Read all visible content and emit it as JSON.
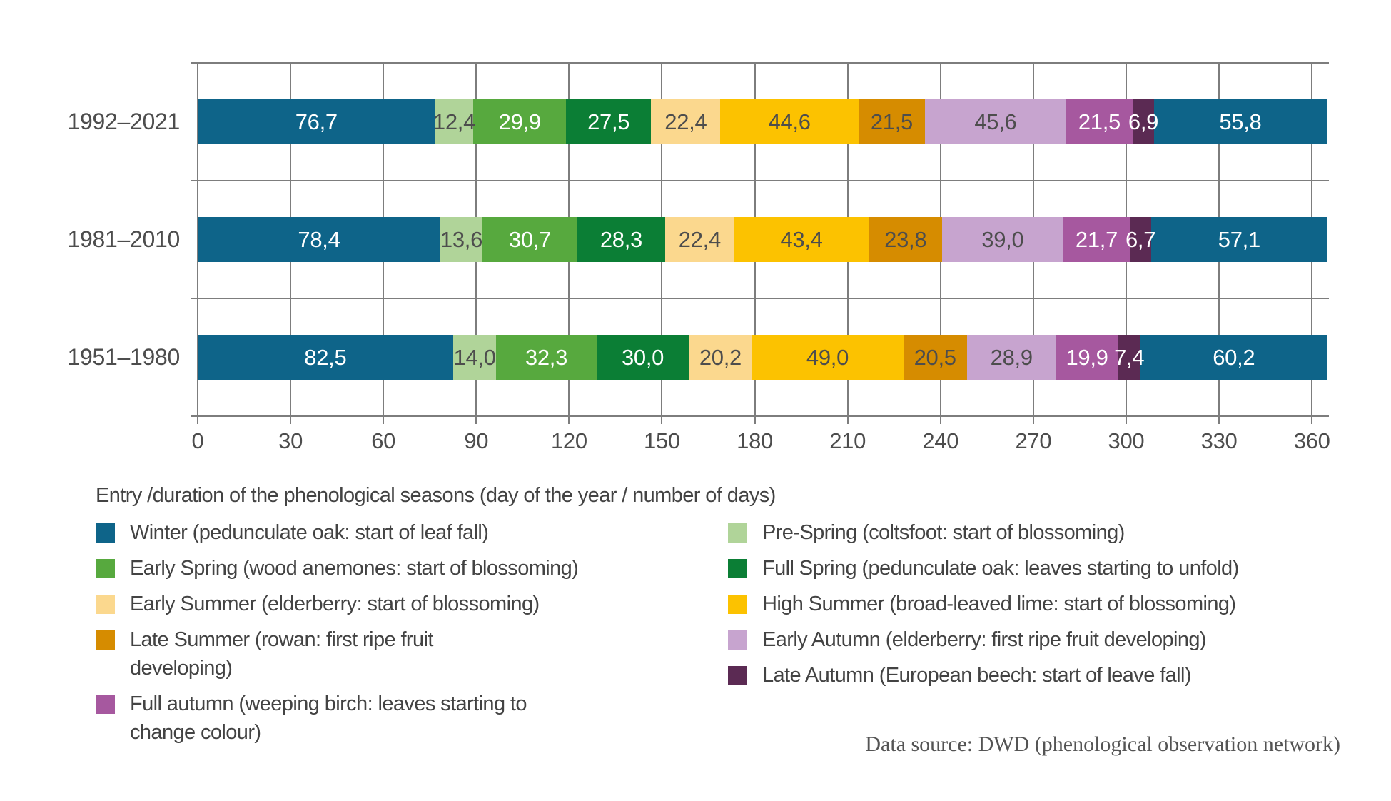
{
  "chart_data": {
    "type": "bar",
    "variant": "horizontal-stacked",
    "title": "Entry /duration of the phenological seasons (day of the year / number of days)",
    "xlabel": "day of the year",
    "axis": {
      "ticks": [
        0,
        30,
        60,
        90,
        120,
        150,
        180,
        210,
        240,
        270,
        300,
        330,
        360
      ],
      "max_days": 365.5,
      "grid": true
    },
    "seasons": {
      "winter": {
        "color": "#0e6489",
        "text": "#ffffff"
      },
      "pre_spring": {
        "color": "#b0d499",
        "text": "#4d4d4d"
      },
      "early_spring": {
        "color": "#57a93e",
        "text": "#ffffff"
      },
      "full_spring": {
        "color": "#0b7e35",
        "text": "#ffffff"
      },
      "early_summer": {
        "color": "#fbd88e",
        "text": "#4d4d4d"
      },
      "high_summer": {
        "color": "#fcc200",
        "text": "#4d4d4d"
      },
      "late_summer": {
        "color": "#d68c00",
        "text": "#4d4d4d"
      },
      "early_autumn": {
        "color": "#c7a4cf",
        "text": "#4d4d4d"
      },
      "full_autumn": {
        "color": "#a6589f",
        "text": "#ffffff"
      },
      "late_autumn": {
        "color": "#5b2a53",
        "text": "#ffffff"
      }
    },
    "rows": [
      {
        "label": "1992–2021",
        "segments": [
          [
            "winter",
            76.7,
            "76,7"
          ],
          [
            "pre_spring",
            12.4,
            "12,4"
          ],
          [
            "early_spring",
            29.9,
            "29,9"
          ],
          [
            "full_spring",
            27.5,
            "27,5"
          ],
          [
            "early_summer",
            22.4,
            "22,4"
          ],
          [
            "high_summer",
            44.6,
            "44,6"
          ],
          [
            "late_summer",
            21.5,
            "21,5"
          ],
          [
            "early_autumn",
            45.6,
            "45,6"
          ],
          [
            "full_autumn",
            21.5,
            "21,5"
          ],
          [
            "late_autumn",
            6.9,
            "6,9"
          ],
          [
            "winter",
            55.8,
            "55,8"
          ]
        ]
      },
      {
        "label": "1981–2010",
        "segments": [
          [
            "winter",
            78.4,
            "78,4"
          ],
          [
            "pre_spring",
            13.6,
            "13,6"
          ],
          [
            "early_spring",
            30.7,
            "30,7"
          ],
          [
            "full_spring",
            28.3,
            "28,3"
          ],
          [
            "early_summer",
            22.4,
            "22,4"
          ],
          [
            "high_summer",
            43.4,
            "43,4"
          ],
          [
            "late_summer",
            23.8,
            "23,8"
          ],
          [
            "early_autumn",
            39.0,
            "39,0"
          ],
          [
            "full_autumn",
            21.7,
            "21,7"
          ],
          [
            "late_autumn",
            6.7,
            "6,7"
          ],
          [
            "winter",
            57.1,
            "57,1"
          ]
        ]
      },
      {
        "label": "1951–1980",
        "segments": [
          [
            "winter",
            82.5,
            "82,5"
          ],
          [
            "pre_spring",
            14.0,
            "14,0"
          ],
          [
            "early_spring",
            32.3,
            "32,3"
          ],
          [
            "full_spring",
            30.0,
            "30,0"
          ],
          [
            "early_summer",
            20.2,
            "20,2"
          ],
          [
            "high_summer",
            49.0,
            "49,0"
          ],
          [
            "late_summer",
            20.5,
            "20,5"
          ],
          [
            "early_autumn",
            28.9,
            "28,9"
          ],
          [
            "full_autumn",
            19.9,
            "19,9"
          ],
          [
            "late_autumn",
            7.4,
            "7,4"
          ],
          [
            "winter",
            60.2,
            "60,2"
          ]
        ]
      }
    ],
    "legend": {
      "columns": [
        [
          {
            "season": "winter",
            "label": "Winter (pedunculate oak: start of leaf fall)"
          },
          {
            "season": "early_spring",
            "label": "Early Spring (wood anemones: start of blossoming)"
          },
          {
            "season": "early_summer",
            "label": "Early Summer (elderberry: start of blossoming)"
          },
          {
            "season": "late_summer",
            "label": "Late Summer (rowan: first ripe fruit\ndeveloping)"
          },
          {
            "season": "full_autumn",
            "label": "Full autumn (weeping birch: leaves starting to\nchange colour)"
          }
        ],
        [
          {
            "season": "pre_spring",
            "label": "Pre-Spring (coltsfoot: start of blossoming)"
          },
          {
            "season": "full_spring",
            "label": "Full Spring (pedunculate oak: leaves starting to unfold)"
          },
          {
            "season": "high_summer",
            "label": "High Summer (broad-leaved lime: start of blossoming)"
          },
          {
            "season": "early_autumn",
            "label": "Early Autumn (elderberry: first ripe fruit developing)"
          },
          {
            "season": "late_autumn",
            "label": "Late Autumn (European beech: start of leave fall)"
          }
        ]
      ]
    },
    "source_note": "Data source: DWD (phenological observation network)"
  },
  "style": {
    "grid_color": "#7d7d7d",
    "text_color": "#4a4a4a"
  }
}
